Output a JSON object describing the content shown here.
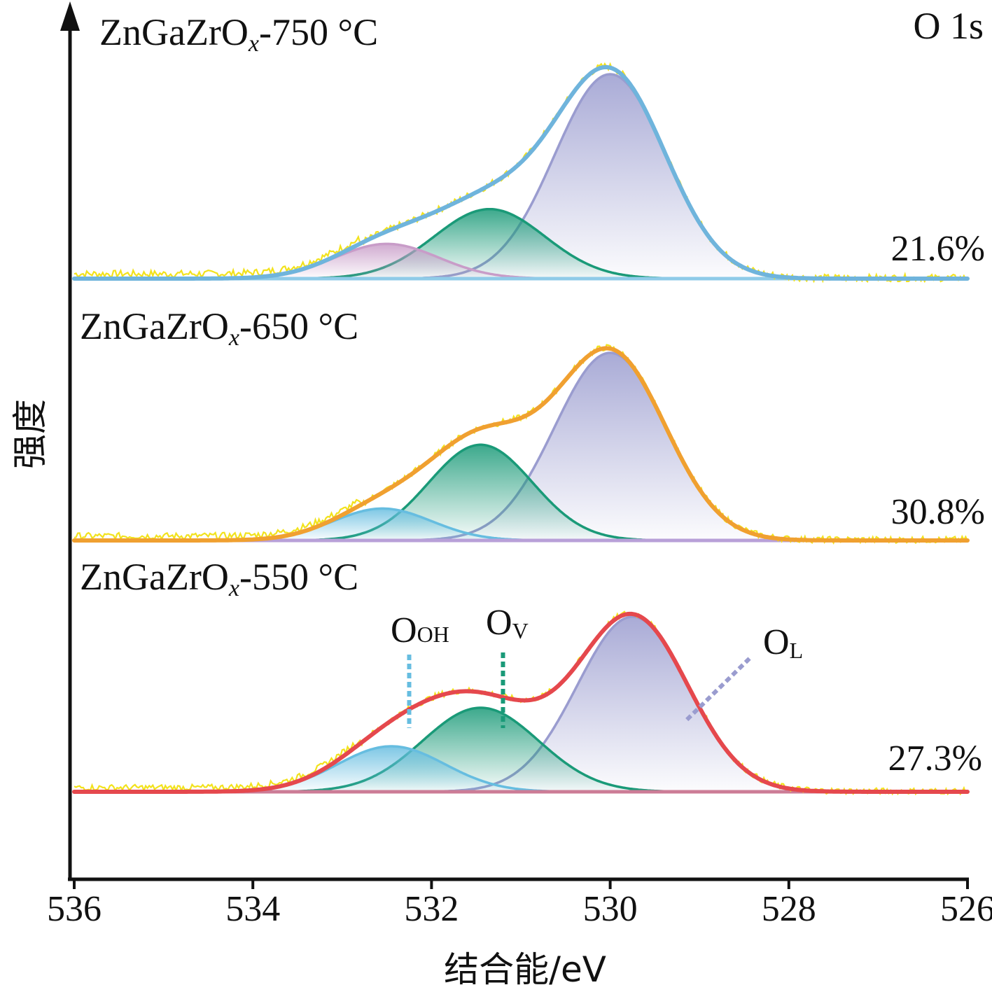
{
  "chart_data": {
    "type": "line",
    "title": "O 1s",
    "xlabel": "结合能/eV",
    "ylabel": "强度",
    "xlim": [
      536,
      526
    ],
    "x_ticks": [
      536,
      534,
      532,
      530,
      528,
      526
    ],
    "x_reversed": true,
    "grid": false,
    "legend": "none",
    "peak_labels": {
      "OH": "OH",
      "V": "V",
      "L": "L",
      "O": "O"
    },
    "panels": [
      {
        "name": "ZnGaZrOx-750 °C",
        "name_parts": {
          "base": "ZnGaZrO",
          "sub": "x",
          "suffix": "-750 °C"
        },
        "percent": "21.6%",
        "envelope_color": "#6fb4dc",
        "baseline_color": "#8fcbe8",
        "components": [
          {
            "label": "OL",
            "center": 530.0,
            "height": 1.0,
            "width": 0.62,
            "color": "#9a9ccf"
          },
          {
            "label": "OV",
            "center": 531.35,
            "height": 0.34,
            "width": 0.62,
            "color": "#1a9a78"
          },
          {
            "label": "OOH",
            "center": 532.5,
            "height": 0.17,
            "width": 0.58,
            "color": "#c89cc8"
          }
        ]
      },
      {
        "name": "ZnGaZrOx-650 °C",
        "name_parts": {
          "base": "ZnGaZrO",
          "sub": "x",
          "suffix": "-650 °C"
        },
        "percent": "30.8%",
        "envelope_color": "#f0a030",
        "baseline_color": "#b8a0d8",
        "components": [
          {
            "label": "OL",
            "center": 530.0,
            "height": 1.0,
            "width": 0.62,
            "color": "#9a9ccf"
          },
          {
            "label": "OV",
            "center": 531.45,
            "height": 0.51,
            "width": 0.58,
            "color": "#1a9a78"
          },
          {
            "label": "OOH",
            "center": 532.55,
            "height": 0.17,
            "width": 0.55,
            "color": "#66bde0"
          }
        ]
      },
      {
        "name": "ZnGaZrOx-550 °C",
        "name_parts": {
          "base": "ZnGaZrO",
          "sub": "x",
          "suffix": "-550 °C"
        },
        "percent": "27.3%",
        "envelope_color": "#e5484d",
        "baseline_color": "#cc7c96",
        "components": [
          {
            "label": "OL",
            "center": 529.75,
            "height": 1.0,
            "width": 0.62,
            "color": "#9a9ccf"
          },
          {
            "label": "OV",
            "center": 531.45,
            "height": 0.48,
            "width": 0.65,
            "color": "#1a9a78"
          },
          {
            "label": "OOH",
            "center": 532.45,
            "height": 0.26,
            "width": 0.6,
            "color": "#66bde0"
          }
        ],
        "markers": [
          {
            "label": "OOH",
            "x": 532.25,
            "color": "#66bde0"
          },
          {
            "label": "OV",
            "x": 531.2,
            "color": "#1a9a78"
          },
          {
            "label": "OL",
            "x": 529.0,
            "color": "#9a9ccf"
          }
        ]
      }
    ]
  }
}
